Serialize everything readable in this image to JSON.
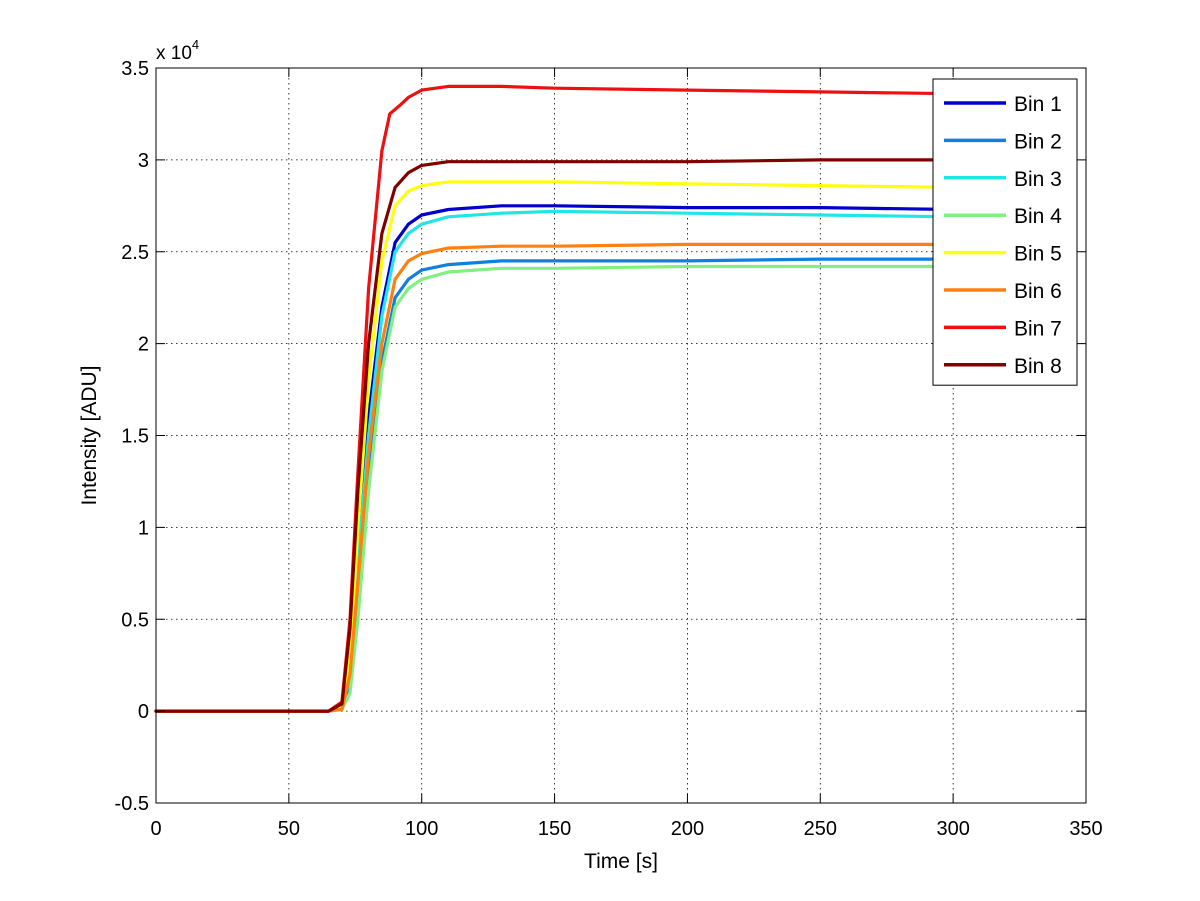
{
  "chart_data": {
    "type": "line",
    "title": "",
    "xlabel": "Time [s]",
    "ylabel": "Intensity [ADU]",
    "y_multiplier_label": "x 10",
    "y_multiplier_exponent": "4",
    "xlim": [
      0,
      350
    ],
    "ylim": [
      -0.5,
      3.5
    ],
    "x_ticks": [
      0,
      50,
      100,
      150,
      200,
      250,
      300,
      350
    ],
    "x_tick_labels": [
      "0",
      "50",
      "100",
      "150",
      "200",
      "250",
      "300",
      "350"
    ],
    "y_ticks": [
      -0.5,
      0,
      0.5,
      1,
      1.5,
      2,
      2.5,
      3,
      3.5
    ],
    "y_tick_labels": [
      "-0.5",
      "0",
      "0.5",
      "1",
      "1.5",
      "2",
      "2.5",
      "3",
      "3.5"
    ],
    "grid": true,
    "legend_position": "top-right",
    "series": [
      {
        "name": "Bin 1",
        "color": "#0000CC",
        "x": [
          0,
          65,
          70,
          73,
          76,
          80,
          85,
          90,
          95,
          100,
          110,
          130,
          150,
          200,
          250,
          300
        ],
        "y": [
          0,
          0,
          0.02,
          0.3,
          0.9,
          1.6,
          2.2,
          2.55,
          2.65,
          2.7,
          2.73,
          2.75,
          2.75,
          2.74,
          2.74,
          2.73
        ]
      },
      {
        "name": "Bin 2",
        "color": "#0F7FE0",
        "x": [
          0,
          65,
          70,
          73,
          76,
          80,
          85,
          90,
          95,
          100,
          110,
          130,
          150,
          200,
          250,
          300
        ],
        "y": [
          0,
          0,
          0.01,
          0.15,
          0.6,
          1.3,
          1.9,
          2.25,
          2.35,
          2.4,
          2.43,
          2.45,
          2.45,
          2.45,
          2.46,
          2.46
        ]
      },
      {
        "name": "Bin 3",
        "color": "#22E5E5",
        "x": [
          0,
          65,
          70,
          73,
          76,
          80,
          85,
          90,
          95,
          100,
          110,
          130,
          150,
          200,
          250,
          300
        ],
        "y": [
          0,
          0,
          0.02,
          0.25,
          0.8,
          1.5,
          2.15,
          2.5,
          2.6,
          2.65,
          2.69,
          2.71,
          2.72,
          2.71,
          2.7,
          2.69
        ]
      },
      {
        "name": "Bin 4",
        "color": "#80F080",
        "x": [
          0,
          65,
          70,
          73,
          76,
          80,
          85,
          90,
          95,
          100,
          110,
          130,
          150,
          200,
          250,
          300
        ],
        "y": [
          0,
          0,
          0.01,
          0.1,
          0.5,
          1.2,
          1.85,
          2.2,
          2.3,
          2.35,
          2.39,
          2.41,
          2.41,
          2.42,
          2.42,
          2.42
        ]
      },
      {
        "name": "Bin 5",
        "color": "#FFFF10",
        "x": [
          0,
          65,
          70,
          73,
          76,
          80,
          85,
          90,
          95,
          100,
          110,
          130,
          150,
          200,
          250,
          300
        ],
        "y": [
          0,
          0,
          0.02,
          0.3,
          1.0,
          1.8,
          2.45,
          2.75,
          2.83,
          2.86,
          2.88,
          2.88,
          2.88,
          2.87,
          2.86,
          2.85
        ]
      },
      {
        "name": "Bin 6",
        "color": "#FF8010",
        "x": [
          0,
          65,
          70,
          73,
          76,
          80,
          85,
          90,
          95,
          100,
          110,
          130,
          150,
          200,
          250,
          300
        ],
        "y": [
          0,
          0,
          0.01,
          0.2,
          0.7,
          1.4,
          2.0,
          2.35,
          2.45,
          2.49,
          2.52,
          2.53,
          2.53,
          2.54,
          2.54,
          2.54
        ]
      },
      {
        "name": "Bin 7",
        "color": "#EE1010",
        "x": [
          0,
          65,
          70,
          73,
          76,
          80,
          85,
          88,
          92,
          95,
          100,
          110,
          130,
          150,
          200,
          250,
          300
        ],
        "y": [
          0,
          0,
          0.05,
          0.5,
          1.3,
          2.3,
          3.05,
          3.25,
          3.3,
          3.34,
          3.38,
          3.4,
          3.4,
          3.39,
          3.38,
          3.37,
          3.36
        ]
      },
      {
        "name": "Bin 8",
        "color": "#800000",
        "x": [
          0,
          65,
          70,
          73,
          76,
          80,
          85,
          90,
          95,
          100,
          110,
          130,
          150,
          200,
          250,
          300
        ],
        "y": [
          0,
          0,
          0.04,
          0.45,
          1.2,
          2.0,
          2.6,
          2.85,
          2.93,
          2.97,
          2.99,
          2.99,
          2.99,
          2.99,
          3.0,
          3.0
        ]
      }
    ]
  }
}
